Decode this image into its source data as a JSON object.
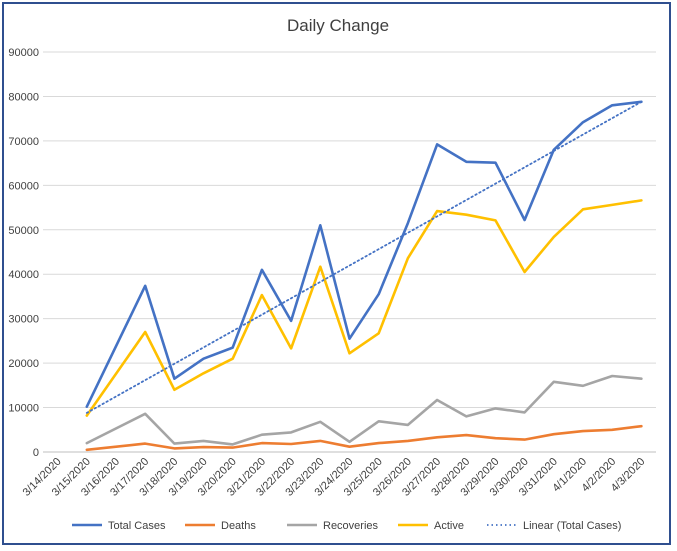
{
  "chart_data": {
    "type": "line",
    "title": "Daily Change",
    "xlabel": "",
    "ylabel": "",
    "ylim": [
      0,
      90000
    ],
    "yticks": [
      0,
      10000,
      20000,
      30000,
      40000,
      50000,
      60000,
      70000,
      80000,
      90000
    ],
    "grid": true,
    "legend_position": "bottom",
    "categories": [
      "3/14/2020",
      "3/15/2020",
      "3/16/2020",
      "3/17/2020",
      "3/18/2020",
      "3/19/2020",
      "3/20/2020",
      "3/21/2020",
      "3/22/2020",
      "3/23/2020",
      "3/24/2020",
      "3/25/2020",
      "3/26/2020",
      "3/27/2020",
      "3/28/2020",
      "3/29/2020",
      "3/30/2020",
      "3/31/2020",
      "4/1/2020",
      "4/2/2020",
      "4/3/2020"
    ],
    "series": [
      {
        "name": "Total Cases",
        "color": "#4472c4",
        "style": "solid",
        "values": [
          null,
          10200,
          null,
          37400,
          16500,
          21000,
          23500,
          41000,
          29500,
          51000,
          25500,
          35500,
          51500,
          69200,
          65300,
          65100,
          52200,
          68000,
          74200,
          78000,
          78800
        ]
      },
      {
        "name": "Deaths",
        "color": "#ed7d31",
        "style": "solid",
        "values": [
          null,
          500,
          null,
          1900,
          800,
          1100,
          1000,
          2000,
          1800,
          2500,
          1200,
          2000,
          2500,
          3300,
          3800,
          3100,
          2800,
          4000,
          4700,
          5000,
          5800
        ]
      },
      {
        "name": "Recoveries",
        "color": "#a5a5a5",
        "style": "solid",
        "values": [
          null,
          2000,
          null,
          8600,
          1900,
          2500,
          1700,
          3900,
          4400,
          6800,
          2300,
          6900,
          6100,
          11700,
          8000,
          9800,
          8900,
          15800,
          14900,
          17100,
          16500
        ]
      },
      {
        "name": "Active",
        "color": "#ffc000",
        "style": "solid",
        "values": [
          null,
          8200,
          null,
          27000,
          14000,
          17700,
          21000,
          35300,
          23300,
          41700,
          22200,
          26700,
          43600,
          54200,
          53400,
          52100,
          40500,
          48400,
          54600,
          55600,
          56600
        ]
      },
      {
        "name": "Linear (Total Cases)",
        "color": "#4472c4",
        "style": "dotted",
        "trend_of": "Total Cases",
        "values": [
          null,
          8800,
          null,
          null,
          null,
          null,
          null,
          null,
          null,
          null,
          null,
          null,
          null,
          null,
          null,
          null,
          null,
          null,
          null,
          null,
          78800
        ]
      }
    ]
  }
}
